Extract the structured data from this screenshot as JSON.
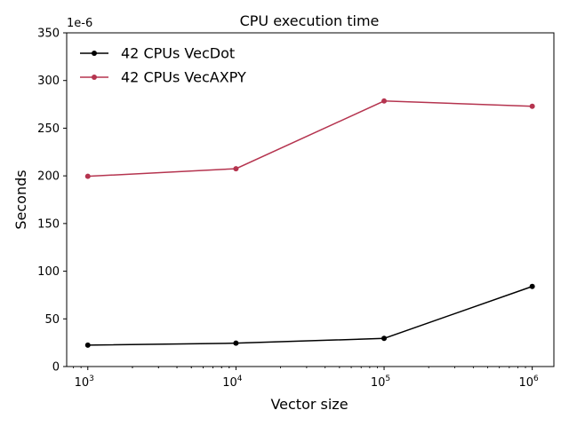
{
  "chart_data": {
    "type": "line",
    "title": "CPU execution time",
    "xlabel": "Vector size",
    "ylabel": "Seconds",
    "y_offset_label": "1e-6",
    "x_scale": "log",
    "x": [
      1000,
      10000,
      100000,
      1000000
    ],
    "x_tick_labels": [
      {
        "base": "10",
        "exp": "3"
      },
      {
        "base": "10",
        "exp": "4"
      },
      {
        "base": "10",
        "exp": "5"
      },
      {
        "base": "10",
        "exp": "6"
      }
    ],
    "xlim": [
      720,
      1400000
    ],
    "ylim": [
      0,
      350
    ],
    "y_ticks": [
      0,
      50,
      100,
      150,
      200,
      250,
      300,
      350
    ],
    "grid": false,
    "legend_position": "top-left",
    "series": [
      {
        "name": "42 CPUs VecDot",
        "color": "#000000",
        "values": [
          22.5,
          24.5,
          29.5,
          84
        ]
      },
      {
        "name": "42 CPUs VecAXPY",
        "color": "#b5344f",
        "values": [
          199.5,
          207.5,
          278.5,
          273
        ]
      }
    ]
  }
}
